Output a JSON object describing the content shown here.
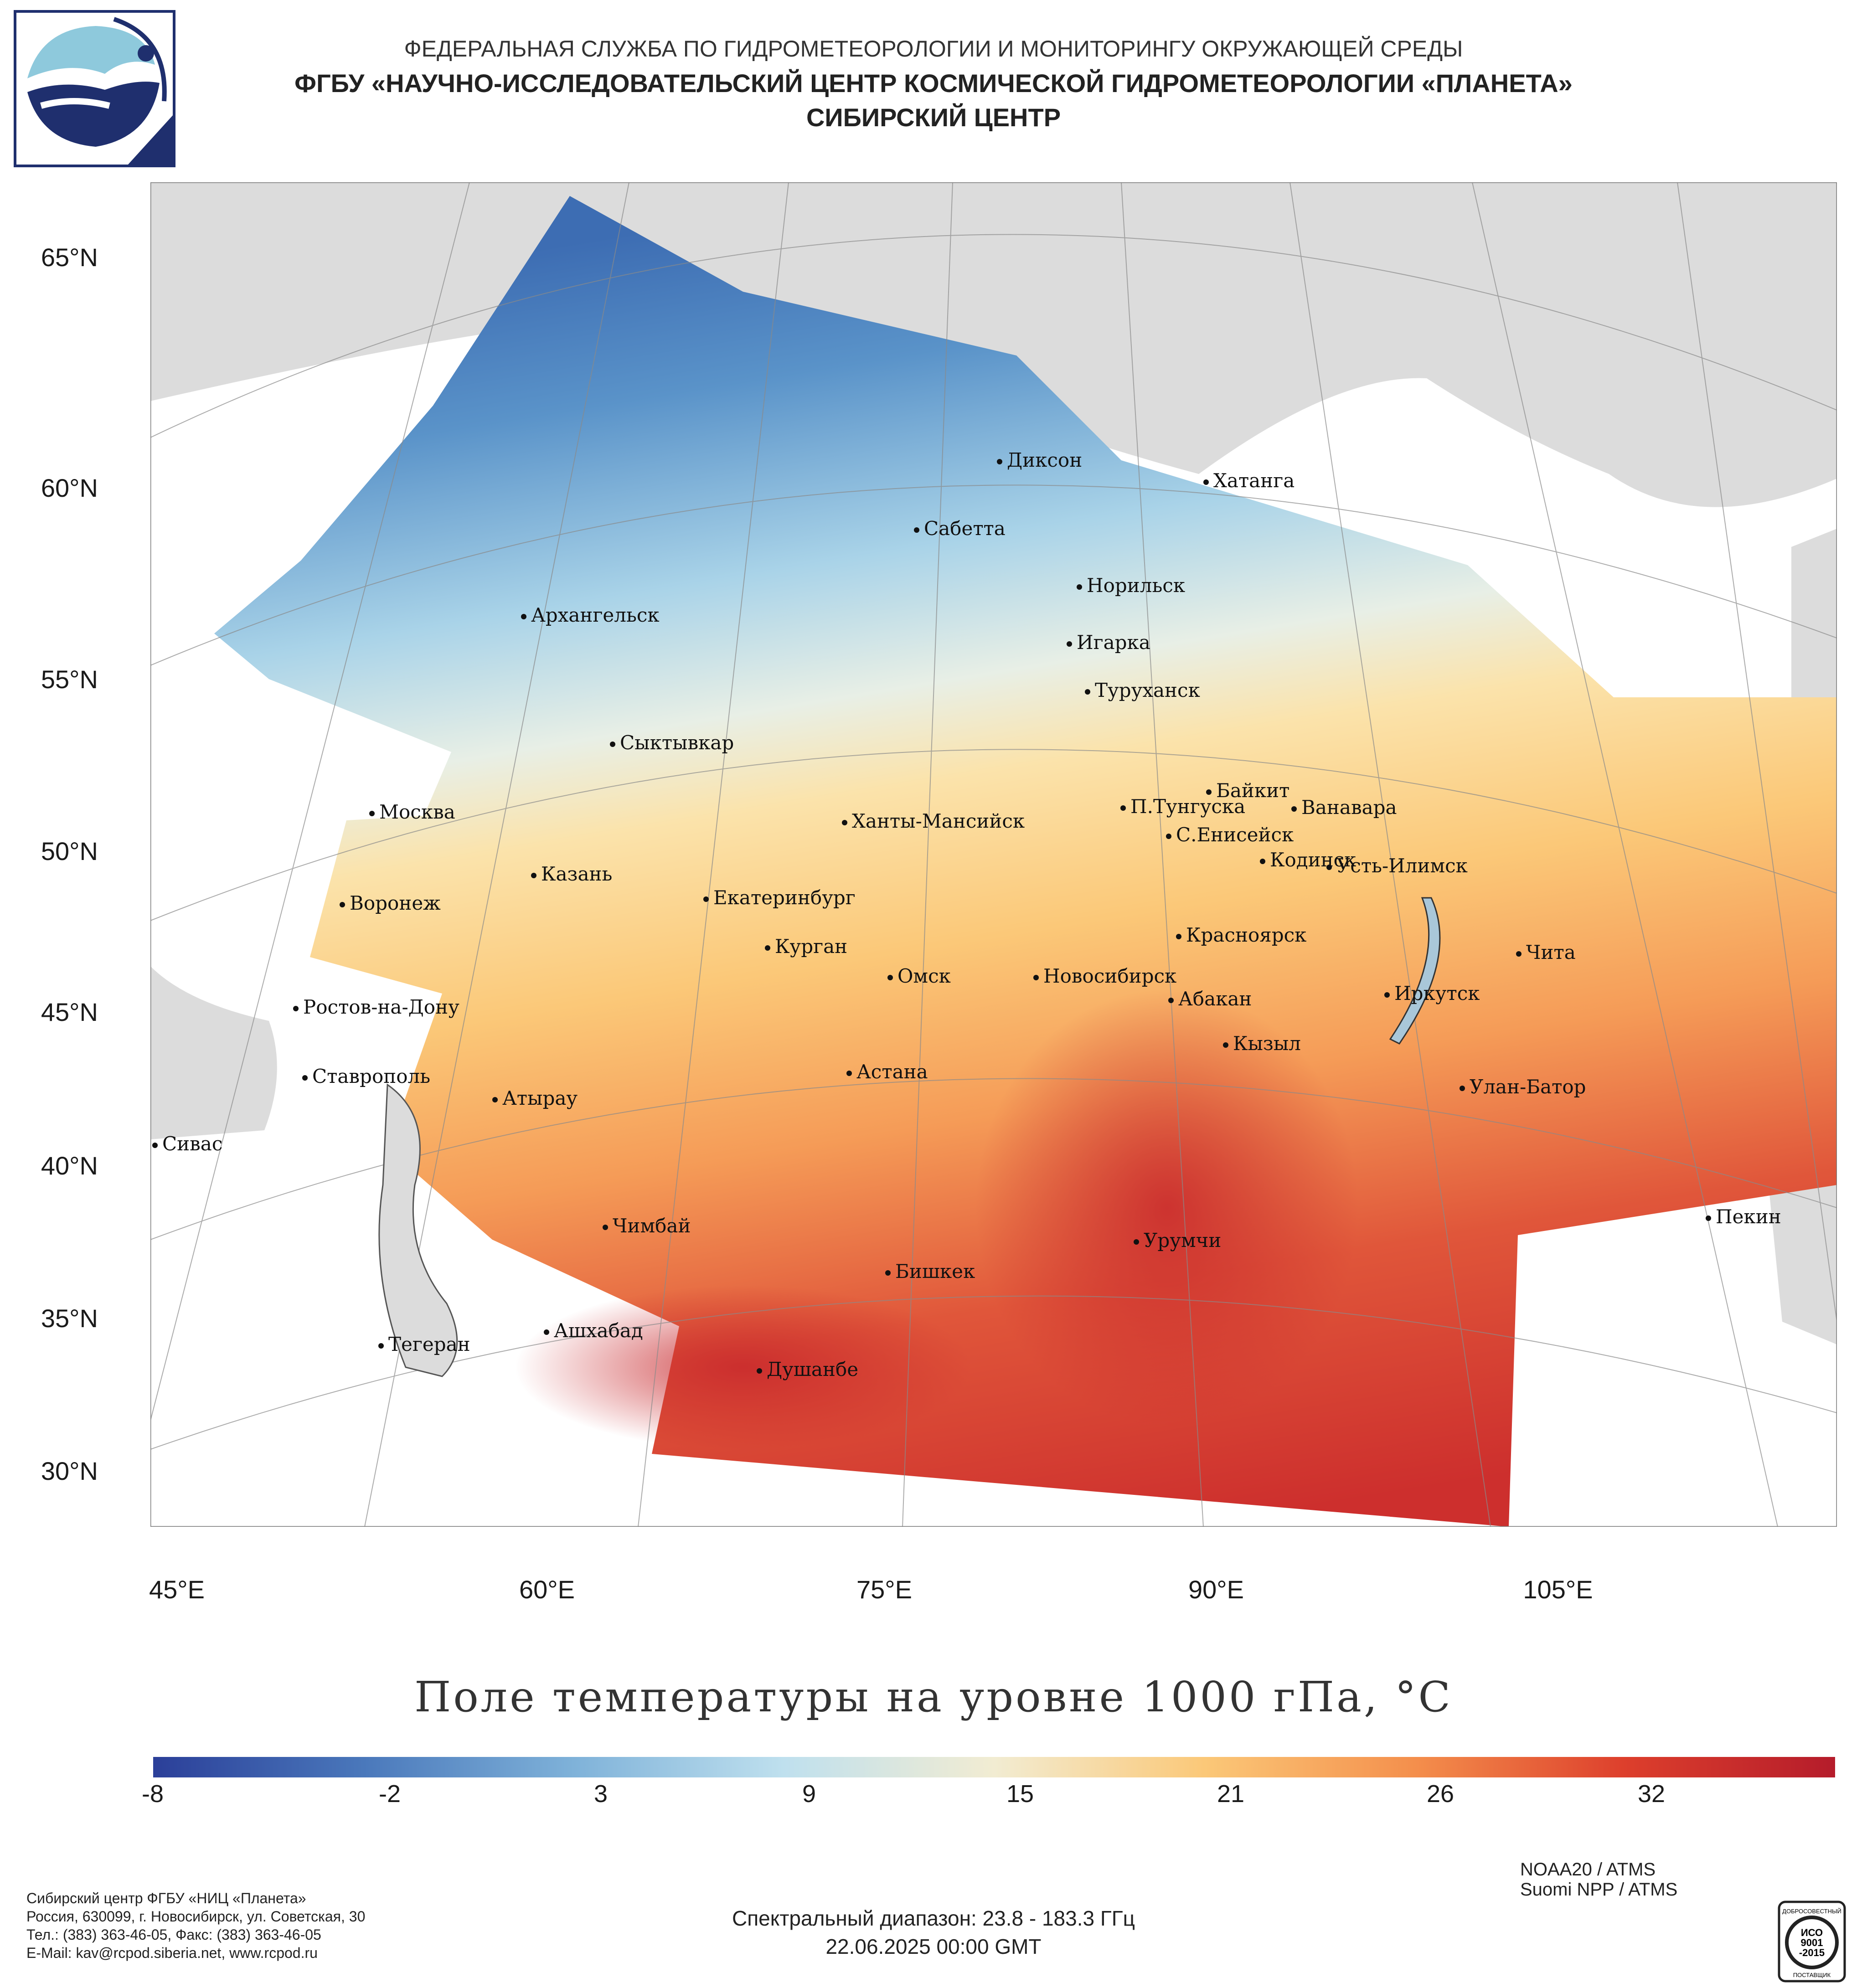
{
  "header": {
    "line1": "ФЕДЕРАЛЬНАЯ СЛУЖБА ПО ГИДРОМЕТЕОРОЛОГИИ И МОНИТОРИНГУ ОКРУЖАЮЩЕЙ СРЕДЫ",
    "line2": "ФГБУ «НАУЧНО-ИССЛЕДОВАТЕЛЬСКИЙ ЦЕНТР КОСМИЧЕСКОЙ ГИДРОМЕТЕОРОЛОГИИ «ПЛАНЕТА»",
    "line3": "СИБИРСКИЙ ЦЕНТР"
  },
  "map": {
    "lat_labels": [
      "65°N",
      "60°N",
      "55°N",
      "50°N",
      "45°N",
      "40°N",
      "35°N",
      "30°N"
    ],
    "lon_labels": [
      "45°E",
      "60°E",
      "75°E",
      "90°E",
      "105°E"
    ],
    "cities": [
      "Диксон",
      "Хатанга",
      "Сабетта",
      "Норильск",
      "Архангельск",
      "Игарка",
      "Туруханск",
      "Сыктывкар",
      "Байкит",
      "Москва",
      "П.Тунгуска",
      "Ванавара",
      "Ханты-Мансийск",
      "С.Енисейск",
      "Кодинск",
      "Усть-Илимск",
      "Казань",
      "Екатеринбург",
      "Воронеж",
      "Красноярск",
      "Курган",
      "Чита",
      "Омск",
      "Новосибирск",
      "Иркутск",
      "Ростов-на-Дону",
      "Абакан",
      "Кызыл",
      "Астана",
      "Ставрополь",
      "Улан-Батор",
      "Атырау",
      "Сивас",
      "Пекин",
      "Чимбай",
      "Урумчи",
      "Бишкек",
      "Ашхабад",
      "Тегеран",
      "Душанбе"
    ]
  },
  "chart_title": "Поле температуры на уровне 1000 гПа, °C",
  "colorbar": {
    "ticks": [
      "-8",
      "-2",
      "3",
      "9",
      "15",
      "21",
      "26",
      "32"
    ],
    "colors": [
      "#2b3f99",
      "#4a78bb",
      "#7fb2d9",
      "#bfe0ee",
      "#f2ecd2",
      "#fbc878",
      "#f48f4c",
      "#dd3f2c",
      "#b51c2b"
    ]
  },
  "footer": {
    "org_line1": "Сибирский центр ФГБУ «НИЦ «Планета»",
    "org_line2": "Россия, 630099, г. Новосибирск, ул. Советская, 30",
    "org_line3": "Тел.: (383) 363-46-05, Факс: (383) 363-46-05",
    "org_line4": "E-Mail: kav@rcpod.siberia.net, www.rcpod.ru",
    "sat1": "NOAA20 / ATMS",
    "sat2": "Suomi NPP / ATMS",
    "spectral": "Спектральный диапазон: 23.8 - 183.3 ГГц",
    "datetime": "22.06.2025 00:00 GMT"
  },
  "iso_badge": {
    "top": "ДОБРОСОВЕСТНЫЙ",
    "mid1": "ИСО",
    "mid2": "9001",
    "mid3": "-2015",
    "bottom": "ПОСТАВЩИК"
  }
}
